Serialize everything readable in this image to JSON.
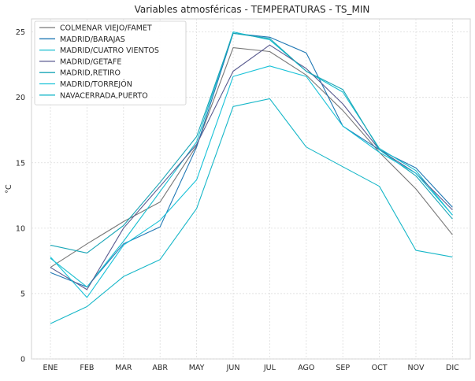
{
  "chart_data": {
    "type": "line",
    "title": "Variables atmosféricas - TEMPERATURAS - TS_MIN",
    "xlabel": "",
    "ylabel": "°C",
    "categories": [
      "ENE",
      "FEB",
      "MAR",
      "ABR",
      "MAY",
      "JUN",
      "JUL",
      "AGO",
      "SEP",
      "OCT",
      "NOV",
      "DIC"
    ],
    "ylim": [
      0,
      26
    ],
    "yticks": [
      0,
      5,
      10,
      15,
      20,
      25
    ],
    "grid": true,
    "legend_position": "top-left",
    "series": [
      {
        "name": "COLMENAR VIEJO/FAMET",
        "color": "#777777",
        "values": [
          7.0,
          8.8,
          10.5,
          12.0,
          16.3,
          23.8,
          23.5,
          21.7,
          19.0,
          15.8,
          13.0,
          9.5
        ]
      },
      {
        "name": "MADRID/BARAJAS",
        "color": "#1f77b4",
        "values": [
          6.6,
          5.5,
          8.8,
          10.1,
          16.2,
          24.9,
          24.6,
          23.4,
          17.8,
          16.0,
          14.6,
          11.6
        ]
      },
      {
        "name": "MADRID/CUATRO VIENTOS",
        "color": "#17becf",
        "values": [
          7.7,
          5.5,
          9.0,
          12.8,
          16.6,
          25.0,
          24.4,
          22.0,
          20.4,
          16.1,
          14.4,
          11.0
        ]
      },
      {
        "name": "MADRID/GETAFE",
        "color": "#595a8f",
        "values": [
          7.0,
          5.3,
          10.0,
          13.2,
          16.4,
          22.0,
          24.0,
          22.2,
          19.5,
          16.0,
          14.2,
          11.4
        ]
      },
      {
        "name": "MADRID,RETIRO",
        "color": "#1aa6b7",
        "values": [
          8.7,
          8.1,
          10.2,
          13.5,
          17.0,
          24.9,
          24.5,
          22.0,
          20.6,
          16.0,
          14.0,
          10.7
        ]
      },
      {
        "name": "MADRID/TORREJÓN",
        "color": "#19c2d8",
        "values": [
          7.8,
          4.7,
          8.7,
          10.6,
          13.7,
          21.6,
          22.4,
          21.6,
          17.8,
          15.8,
          14.2,
          11.0
        ]
      },
      {
        "name": "NAVACERRADA,PUERTO",
        "color": "#17b7c8",
        "values": [
          2.7,
          4.0,
          6.3,
          7.6,
          11.5,
          19.3,
          19.9,
          16.2,
          14.7,
          13.2,
          8.3,
          7.8
        ]
      }
    ]
  }
}
